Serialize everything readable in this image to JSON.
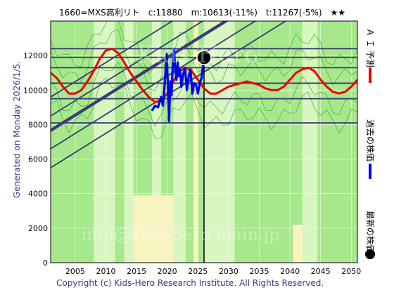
{
  "header": {
    "title": "1660=MXS高利リト　c:11880　m:10613(-11%)　t:11267(-5%)　★★"
  },
  "side_note": "Generated on Monday 2026/1/5.",
  "footer": "Copyright (c) Kids-Hero Research Institute. All Rights Reserved.",
  "watermark": {
    "line1": "Kids-Hero",
    "line2": "info@kids-hero.main.jp"
  },
  "legend": [
    {
      "label": "Ａ Ｉ 予測",
      "color": "#ee0000"
    },
    {
      "label": "過去の株価",
      "color": "#0000ee"
    },
    {
      "label": "最新の株価",
      "color": "#000000"
    }
  ],
  "colors": {
    "plot_bg": "#a8e88c",
    "light_green": "#d8f6c0",
    "yellow": "#f8f4c0",
    "channel": "#3a3a72",
    "hline": "#3a3a72",
    "grid": "#ffffff",
    "thin_green": "#20a020"
  },
  "chart_data": {
    "type": "line",
    "title": "1660=MXS高利リト　c:11880　m:10613(-11%)　t:11267(-5%)　★★",
    "xlim": [
      2001,
      2051
    ],
    "ylim": [
      0,
      14000
    ],
    "xticks": [
      2005,
      2010,
      2015,
      2020,
      2025,
      2030,
      2035,
      2040,
      2045,
      2050
    ],
    "yticks": [
      0,
      2000,
      4000,
      6000,
      8000,
      10000,
      12000
    ],
    "grid": true,
    "legend_position": "right",
    "series": [
      {
        "name": "Ａ Ｉ 予測",
        "color": "#ee0000",
        "x": [
          2001,
          2002,
          2003,
          2004,
          2005,
          2006,
          2007,
          2008,
          2009,
          2010,
          2011,
          2012,
          2013,
          2014,
          2015,
          2016,
          2017,
          2018,
          2019,
          2020,
          2021,
          2022,
          2023,
          2024,
          2025,
          2026,
          2027,
          2028,
          2029,
          2030,
          2031,
          2032,
          2033,
          2034,
          2035,
          2036,
          2037,
          2038,
          2039,
          2040,
          2041,
          2042,
          2043,
          2044,
          2045,
          2046,
          2047,
          2048,
          2049,
          2050,
          2051
        ],
        "values": [
          11000,
          10700,
          10200,
          9800,
          9800,
          10000,
          10500,
          11100,
          11800,
          12300,
          12400,
          12150,
          11600,
          11000,
          10500,
          10000,
          9600,
          9300,
          9400,
          9800,
          10500,
          11100,
          11300,
          11100,
          10600,
          10100,
          9800,
          9800,
          10000,
          10200,
          10300,
          10400,
          10500,
          10400,
          10300,
          10100,
          10000,
          10000,
          10200,
          10600,
          11000,
          11200,
          11300,
          11100,
          10600,
          10200,
          9900,
          9800,
          9900,
          10200,
          10600
        ]
      },
      {
        "name": "過去の株価",
        "color": "#0000ee",
        "x": [
          2017.5,
          2018,
          2018.5,
          2019,
          2019.3,
          2019.6,
          2019.9,
          2020.1,
          2020.3,
          2020.5,
          2020.7,
          2020.9,
          2021.1,
          2021.3,
          2021.5,
          2021.7,
          2021.9,
          2022.1,
          2022.3,
          2022.6,
          2022.9,
          2023.2,
          2023.5,
          2023.8,
          2024.1,
          2024.4,
          2024.7,
          2025.0,
          2025.3,
          2025.6,
          2025.9,
          2026.0
        ],
        "values": [
          8800,
          9100,
          9000,
          9600,
          9100,
          10400,
          12100,
          10400,
          8200,
          10500,
          9700,
          11400,
          12400,
          11200,
          10600,
          11600,
          10800,
          11200,
          10200,
          10900,
          11300,
          10000,
          10800,
          11200,
          9800,
          10400,
          10300,
          9800,
          10400,
          10700,
          11600,
          11880
        ]
      }
    ],
    "latest_point": {
      "x": 2026.0,
      "y": 11880,
      "label": "最新の株価"
    },
    "current_price": 11880,
    "median": 10613,
    "median_change": "-11%",
    "target": 11267,
    "target_change": "-5%",
    "stars": "★★",
    "horizontal_lines": [
      12400,
      11900,
      11300,
      10400,
      9500,
      8100
    ],
    "channel_lines": [
      {
        "x1": 2001,
        "y1": 5500,
        "x2": 2051,
        "y2": 16600
      },
      {
        "x1": 2001,
        "y1": 6600,
        "x2": 2051,
        "y2": 17700
      },
      {
        "x1": 2001,
        "y1": 7600,
        "x2": 2051,
        "y2": 18700
      },
      {
        "x1": 2001,
        "y1": 8500,
        "x2": 2051,
        "y2": 19600
      },
      {
        "x1": 2001,
        "y1": 9600,
        "x2": 2051,
        "y2": 20700
      },
      {
        "x1": 2001,
        "y1": 7700,
        "x2": 2051,
        "y2": 18800
      }
    ],
    "bands_light": [
      {
        "x0": 2008.0,
        "x1": 2011.5
      },
      {
        "x0": 2013.0,
        "x1": 2014.5
      },
      {
        "x0": 2017.5,
        "x1": 2019.0
      },
      {
        "x0": 2021.0,
        "x1": 2023.0
      },
      {
        "x0": 2026.0,
        "x1": 2031.0
      },
      {
        "x0": 2042.0,
        "x1": 2044.5
      }
    ],
    "bands_yellow": [
      {
        "x0": 2014.5,
        "x1": 2021.0,
        "ymax": 3900
      },
      {
        "x0": 2024.3,
        "x1": 2025.0,
        "ymax": 14000
      },
      {
        "x0": 2040.5,
        "x1": 2042.0,
        "ymax": 2200
      }
    ]
  }
}
